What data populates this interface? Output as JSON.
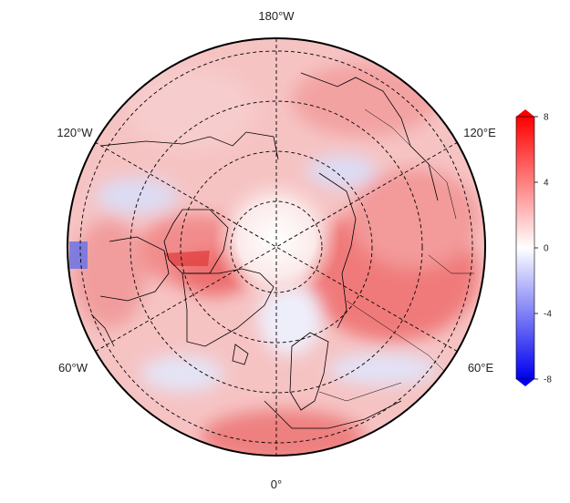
{
  "map": {
    "projection": "north-polar-stereographic",
    "longitude_labels": {
      "top": "180°W",
      "upper_left": "120°W",
      "upper_right": "120°E",
      "lower_left": "60°W",
      "lower_right": "60°E",
      "bottom": "0°"
    },
    "graticule_style": "dashed",
    "colors": {
      "negative": "#0000ee",
      "zero": "#ffffff",
      "positive": "#ff0000",
      "coastline": "#000000",
      "boundary": "#000000"
    }
  },
  "colorbar": {
    "min": -8,
    "max": 8,
    "ticks": [
      "8",
      "4",
      "0",
      "-4",
      "-8"
    ],
    "tick_values": [
      8,
      4,
      0,
      -4,
      -8
    ]
  }
}
